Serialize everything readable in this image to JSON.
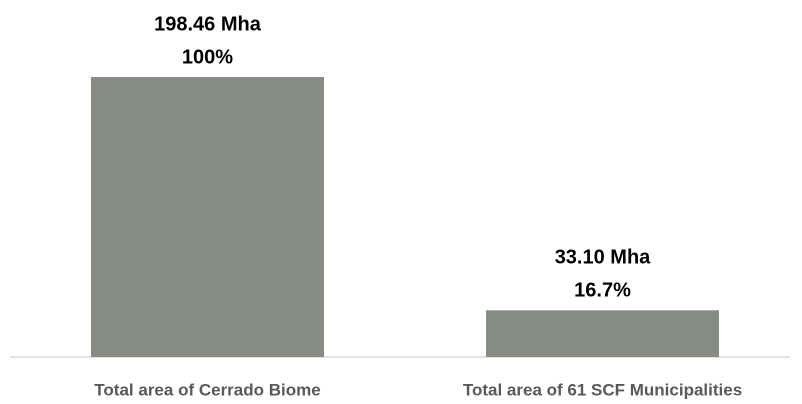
{
  "chart_data": {
    "type": "bar",
    "categories": [
      "Total area of Cerrado Biome",
      "Total area of 61 SCF Municipalities"
    ],
    "values": [
      198.46,
      33.1
    ],
    "value_labels": [
      "198.46 Mha",
      "33.10 Mha"
    ],
    "share_labels": [
      "100%",
      "16.7%"
    ],
    "color": "#868b83"
  }
}
